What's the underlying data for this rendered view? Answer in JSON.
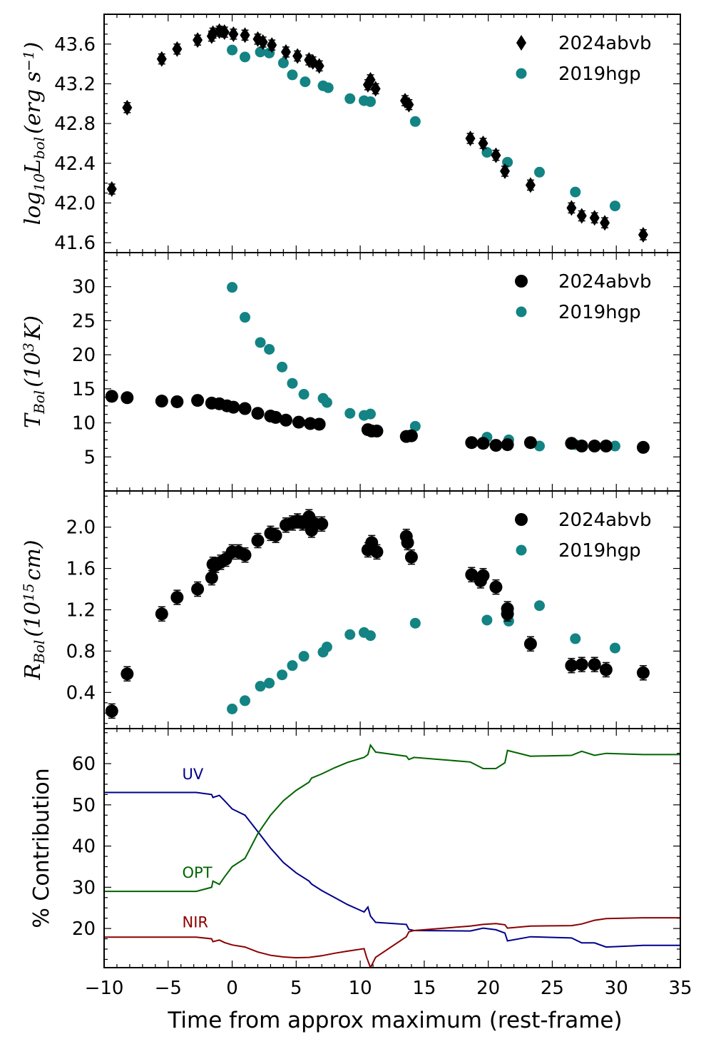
{
  "colors": {
    "abvb": "#000000",
    "hgp": "#138383",
    "uv": "#00008b",
    "opt": "#006400",
    "nir": "#8b0000"
  },
  "x_axis": {
    "label": "Time from approx maximum (rest-frame)",
    "ticks": [
      -10,
      -5,
      0,
      5,
      10,
      15,
      20,
      25,
      30,
      35
    ],
    "tick_labels": [
      "−10",
      "−5",
      "0",
      "5",
      "10",
      "15",
      "20",
      "25",
      "30",
      "35"
    ],
    "lim": [
      -10,
      35
    ]
  },
  "chart_data": [
    {
      "type": "scatter",
      "ylabel_main": "log",
      "ylabel_sub1": "10",
      "ylabel_mid": "L",
      "ylabel_sub2": "bol",
      "ylabel_rest": "(erg s",
      "ylabel_sup": "−1",
      "ylabel_close": ")",
      "ylim": [
        41.5,
        43.9
      ],
      "yticks": [
        41.6,
        42.0,
        42.4,
        42.8,
        43.2,
        43.6
      ],
      "ytick_labels": [
        "41.6",
        "42.0",
        "42.4",
        "42.8",
        "43.2",
        "43.6"
      ],
      "legend": [
        "2024abvb",
        "2019hgp"
      ],
      "legend_position": "top-right",
      "series": [
        {
          "name": "2024abvb",
          "marker": "diamond",
          "color": "#000000",
          "x": [
            -9.4,
            -8.2,
            -5.5,
            -4.3,
            -2.7,
            -1.6,
            -1.5,
            -1.0,
            -0.6,
            0.1,
            1.0,
            2.0,
            2.4,
            3.1,
            4.2,
            5.1,
            6.0,
            6.3,
            6.8,
            10.6,
            10.8,
            11.2,
            13.5,
            13.8,
            18.6,
            19.6,
            20.6,
            21.3,
            23.3,
            26.5,
            27.3,
            28.3,
            29.1,
            32.1
          ],
          "y": [
            42.14,
            42.96,
            43.45,
            43.55,
            43.64,
            43.68,
            43.71,
            43.73,
            43.72,
            43.7,
            43.69,
            43.65,
            43.62,
            43.59,
            43.52,
            43.48,
            43.44,
            43.42,
            43.38,
            43.19,
            43.24,
            43.15,
            43.03,
            42.99,
            42.65,
            42.6,
            42.48,
            42.32,
            42.18,
            41.95,
            41.87,
            41.85,
            41.8,
            41.68
          ]
        },
        {
          "name": "2019hgp",
          "marker": "circle",
          "color": "#138383",
          "x": [
            0.0,
            1.0,
            2.2,
            2.9,
            4.0,
            4.7,
            5.7,
            7.1,
            7.5,
            9.2,
            10.3,
            10.8,
            14.3,
            19.9,
            21.5,
            24.0,
            26.8,
            29.9
          ],
          "y": [
            43.54,
            43.47,
            43.52,
            43.51,
            43.41,
            43.29,
            43.22,
            43.18,
            43.16,
            43.05,
            43.03,
            43.02,
            42.82,
            42.51,
            42.41,
            42.31,
            42.11,
            41.97
          ]
        }
      ]
    },
    {
      "type": "scatter",
      "ylabel_main": "T",
      "ylabel_sub": "Bol",
      "ylabel_rest": "(10",
      "ylabel_sup": "3",
      "ylabel_close": "K)",
      "ylim": [
        0,
        35
      ],
      "yticks": [
        5,
        10,
        15,
        20,
        25,
        30
      ],
      "ytick_labels": [
        "5",
        "10",
        "15",
        "20",
        "25",
        "30"
      ],
      "legend": [
        "2024abvb",
        "2019hgp"
      ],
      "legend_position": "top-right",
      "series": [
        {
          "name": "2024abvb",
          "marker": "circle",
          "color": "#000000",
          "x": [
            -9.4,
            -8.2,
            -5.5,
            -4.3,
            -2.7,
            -1.6,
            -1.0,
            -0.4,
            0.1,
            1.0,
            2.0,
            3.0,
            3.4,
            4.2,
            5.2,
            6.1,
            6.8,
            10.6,
            10.9,
            11.3,
            13.6,
            14.0,
            18.7,
            19.6,
            20.6,
            21.5,
            23.3,
            26.5,
            27.3,
            28.3,
            29.2,
            32.1
          ],
          "y": [
            13.9,
            13.7,
            13.2,
            13.1,
            13.3,
            12.9,
            12.8,
            12.5,
            12.3,
            12.1,
            11.4,
            11.0,
            10.8,
            10.4,
            10.1,
            9.9,
            9.8,
            9.0,
            8.8,
            8.8,
            8.0,
            8.1,
            7.1,
            7.0,
            6.7,
            6.8,
            7.1,
            7.0,
            6.6,
            6.6,
            6.6,
            6.4
          ]
        },
        {
          "name": "2019hgp",
          "marker": "circle",
          "color": "#138383",
          "x": [
            0.0,
            1.0,
            2.2,
            2.9,
            3.9,
            4.7,
            5.6,
            7.1,
            7.4,
            9.2,
            10.3,
            10.8,
            14.3,
            19.9,
            21.6,
            24.0,
            26.8,
            29.9
          ],
          "y": [
            29.9,
            25.5,
            21.8,
            20.8,
            18.2,
            15.8,
            14.2,
            13.6,
            13.0,
            11.4,
            11.1,
            11.3,
            9.5,
            7.9,
            7.5,
            6.6,
            6.8,
            6.6
          ]
        }
      ]
    },
    {
      "type": "scatter",
      "ylabel_main": "R",
      "ylabel_sub": "Bol",
      "ylabel_rest": "(10",
      "ylabel_sup": "15",
      "ylabel_close": "cm)",
      "ylim": [
        0.05,
        2.35
      ],
      "yticks": [
        0.4,
        0.8,
        1.2,
        1.6,
        2.0
      ],
      "ytick_labels": [
        "0.4",
        "0.8",
        "1.2",
        "1.6",
        "2.0"
      ],
      "legend": [
        "2024abvb",
        "2019hgp"
      ],
      "legend_position": "top-right",
      "series": [
        {
          "name": "2024abvb",
          "marker": "circle",
          "color": "#000000",
          "x": [
            -9.4,
            -8.2,
            -5.5,
            -4.3,
            -2.7,
            -1.6,
            -1.5,
            -1.3,
            -0.9,
            -0.5,
            0.0,
            0.5,
            1.0,
            2.0,
            3.0,
            3.4,
            4.2,
            4.7,
            5.1,
            5.5,
            6.0,
            6.2,
            6.5,
            7.0,
            10.6,
            10.9,
            11.3,
            13.6,
            13.7,
            14.0,
            18.7,
            19.4,
            19.6,
            20.6,
            21.5,
            21.5,
            23.3,
            26.5,
            27.3,
            28.3,
            29.2,
            32.1
          ],
          "y": [
            0.22,
            0.58,
            1.16,
            1.32,
            1.4,
            1.51,
            1.64,
            1.63,
            1.66,
            1.69,
            1.76,
            1.76,
            1.73,
            1.87,
            1.94,
            1.92,
            2.02,
            2.04,
            2.06,
            2.04,
            2.1,
            1.97,
            2.03,
            2.03,
            1.78,
            1.85,
            1.76,
            1.91,
            1.85,
            1.71,
            1.54,
            1.48,
            1.53,
            1.42,
            1.21,
            1.16,
            0.87,
            0.66,
            0.67,
            0.67,
            0.62,
            0.59
          ]
        },
        {
          "name": "2019hgp",
          "marker": "circle",
          "color": "#138383",
          "x": [
            0.0,
            1.0,
            2.2,
            2.9,
            3.9,
            4.7,
            5.6,
            7.1,
            7.4,
            9.2,
            10.3,
            10.8,
            14.3,
            19.9,
            21.6,
            24.0,
            26.8,
            29.9
          ],
          "y": [
            0.24,
            0.32,
            0.46,
            0.49,
            0.57,
            0.66,
            0.75,
            0.79,
            0.84,
            0.96,
            0.98,
            0.95,
            1.07,
            1.1,
            1.09,
            1.24,
            0.92,
            0.83
          ]
        }
      ]
    },
    {
      "type": "line",
      "ylabel": "% Contribution",
      "ylim": [
        10.5,
        68.5
      ],
      "yticks": [
        20,
        30,
        40,
        50,
        60
      ],
      "ytick_labels": [
        "20",
        "30",
        "40",
        "50",
        "60"
      ],
      "series": [
        {
          "name": "UV",
          "color": "#00008b",
          "x": [
            -10,
            -2.8,
            -1.6,
            -1.5,
            -1.0,
            -0.6,
            0.0,
            1.0,
            2.0,
            3.0,
            4.0,
            5.0,
            6.0,
            6.2,
            7.0,
            8.0,
            9.0,
            10.3,
            10.6,
            10.8,
            11.2,
            13.6,
            13.8,
            14.2,
            18.6,
            19.6,
            20.6,
            21.3,
            21.5,
            23.3,
            26.5,
            27.3,
            28.3,
            29.2,
            32.1,
            35
          ],
          "y": [
            53.0,
            53.0,
            52.5,
            51.8,
            52.3,
            51.0,
            49.0,
            47.5,
            43.5,
            39.5,
            36.0,
            33.5,
            31.5,
            30.8,
            29.2,
            27.5,
            25.8,
            24.0,
            25.2,
            23.0,
            21.5,
            21.0,
            19.8,
            19.5,
            19.4,
            20.1,
            19.7,
            18.9,
            17.0,
            18.0,
            17.7,
            16.5,
            16.5,
            15.5,
            15.9,
            15.9
          ]
        },
        {
          "name": "OPT",
          "color": "#006400",
          "x": [
            -10,
            -2.8,
            -1.6,
            -1.5,
            -1.0,
            -0.6,
            0.0,
            1.0,
            2.0,
            3.0,
            4.0,
            5.0,
            6.0,
            6.2,
            7.0,
            8.0,
            9.0,
            10.3,
            10.6,
            10.8,
            11.2,
            13.6,
            13.8,
            14.2,
            18.6,
            19.6,
            20.6,
            21.3,
            21.5,
            23.3,
            26.5,
            27.3,
            28.3,
            29.2,
            32.1,
            35
          ],
          "y": [
            29.0,
            29.0,
            30.0,
            31.5,
            30.7,
            32.5,
            35.0,
            37.0,
            43.0,
            47.5,
            51.0,
            53.5,
            55.5,
            56.5,
            57.5,
            59.0,
            60.3,
            61.5,
            62.2,
            64.5,
            62.8,
            61.8,
            61.0,
            61.5,
            60.4,
            58.8,
            58.8,
            60.2,
            63.2,
            61.8,
            62.0,
            63.0,
            62.0,
            62.5,
            62.2,
            62.2
          ]
        },
        {
          "name": "NIR",
          "color": "#8b0000",
          "x": [
            -10,
            -2.8,
            -1.6,
            -1.5,
            -1.0,
            -0.6,
            0.0,
            1.0,
            2.0,
            3.0,
            4.0,
            5.0,
            6.0,
            7.0,
            8.0,
            9.0,
            10.3,
            10.5,
            10.8,
            11.2,
            13.6,
            13.8,
            14.2,
            18.6,
            19.6,
            20.6,
            21.3,
            21.5,
            23.3,
            26.5,
            27.3,
            28.3,
            29.2,
            32.1,
            35
          ],
          "y": [
            17.9,
            17.9,
            17.5,
            16.8,
            17.2,
            16.6,
            16.0,
            15.5,
            14.3,
            13.5,
            13.1,
            12.9,
            13.0,
            13.4,
            14.0,
            14.5,
            15.1,
            13.0,
            10.5,
            13.0,
            18.0,
            19.2,
            19.5,
            20.6,
            21.0,
            21.2,
            20.9,
            20.1,
            20.6,
            20.7,
            21.1,
            22.0,
            22.4,
            22.6,
            22.6
          ]
        }
      ],
      "annotations": [
        {
          "text": "UV",
          "x": -3.9,
          "y": 56.2,
          "color": "#00008b"
        },
        {
          "text": "OPT",
          "x": -3.9,
          "y": 32.3,
          "color": "#006400"
        },
        {
          "text": "NIR",
          "x": -3.9,
          "y": 20.3,
          "color": "#8b0000"
        }
      ]
    }
  ]
}
